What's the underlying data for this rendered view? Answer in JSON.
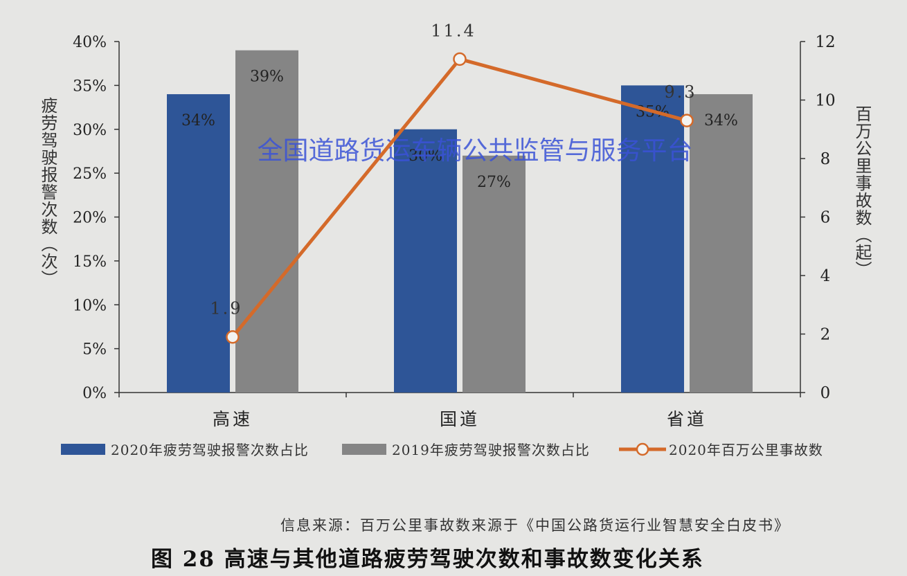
{
  "chart_data": {
    "type": "bar",
    "categories": [
      "高速",
      "国道",
      "省道"
    ],
    "series": [
      {
        "name": "2020年疲劳驾驶报警次数占比",
        "kind": "bar",
        "axis": "left",
        "color": "#2e5597",
        "values": [
          34,
          30,
          35
        ],
        "labels": [
          "34%",
          "30%",
          "35%"
        ]
      },
      {
        "name": "2019年疲劳驾驶报警次数占比",
        "kind": "bar",
        "axis": "left",
        "color": "#858585",
        "values": [
          39,
          27,
          34
        ],
        "labels": [
          "39%",
          "27%",
          "34%"
        ]
      },
      {
        "name": "2020年百万公里事故数",
        "kind": "line",
        "axis": "right",
        "color": "#d46a2a",
        "values": [
          1.9,
          11.4,
          9.3
        ],
        "labels": [
          "1.9",
          "11.4",
          "9.3"
        ]
      }
    ],
    "y_left": {
      "label": "疲劳驾驶报警次数（次）",
      "ylim": [
        0,
        40
      ],
      "ticks": [
        "0%",
        "5%",
        "10%",
        "15%",
        "20%",
        "25%",
        "30%",
        "35%",
        "40%"
      ]
    },
    "y_right": {
      "label": "百万公里事故数（起）",
      "ylim": [
        0,
        12
      ],
      "ticks": [
        "0",
        "2",
        "4",
        "6",
        "8",
        "10",
        "12"
      ]
    },
    "legend_position": "bottom",
    "grid": false
  },
  "watermark": "全国道路货运车辆公共监管与服务平台",
  "source_note": "信息来源：百万公里事故数来源于《中国公路货运行业智慧安全白皮书》",
  "caption": "图 28 高速与其他道路疲劳驾驶次数和事故数变化关系",
  "colors": {
    "background": "#e6e6e4",
    "watermark": "#3a52d6"
  }
}
